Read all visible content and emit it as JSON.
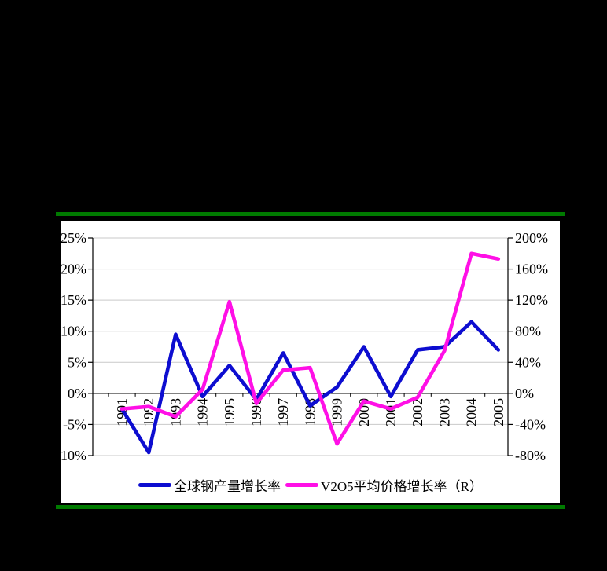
{
  "canvas": {
    "background": "#000000"
  },
  "separators": {
    "color": "#007A00"
  },
  "panel": {
    "background": "#ffffff",
    "gridline_color": "#c9c9c9",
    "axis_color": "#000000"
  },
  "chart_data": {
    "type": "line",
    "title": "",
    "x": [
      "1991",
      "1992",
      "1993",
      "1994",
      "1995",
      "1996",
      "1997",
      "1998",
      "1999",
      "2000",
      "2001",
      "2002",
      "2003",
      "2004",
      "2005"
    ],
    "series": [
      {
        "name": "全球钢产量增长率",
        "axis": "left",
        "color": "#0d0dd0",
        "values": [
          -2.5,
          -9.5,
          9.5,
          -0.5,
          4.5,
          -1,
          6.5,
          -2,
          1,
          7.5,
          -0.5,
          7,
          7.5,
          11.5,
          7
        ]
      },
      {
        "name": "V2O5平均价格增长率（R）",
        "axis": "right",
        "color": "#ff0fe6",
        "values": [
          -20,
          -17,
          -30,
          5,
          118,
          -13,
          30,
          33,
          -65,
          -10,
          -20,
          -5,
          55,
          180,
          173
        ]
      }
    ],
    "left_axis": {
      "min": -10,
      "max": 25,
      "step": 5,
      "ticks": [
        "25%",
        "20%",
        "15%",
        "10%",
        "5%",
        "0%",
        "-5%",
        "-10%"
      ]
    },
    "right_axis": {
      "min": -80,
      "max": 200,
      "step": 40,
      "ticks": [
        "200%",
        "160%",
        "120%",
        "80%",
        "40%",
        "0%",
        "-40%",
        "-80%"
      ]
    },
    "grid": true,
    "legend_position": "bottom",
    "x_label_rotation": -90
  },
  "legend": {
    "items": [
      {
        "label": "全球钢产量增长率",
        "color": "#0d0dd0"
      },
      {
        "label": "V2O5平均价格增长率（R）",
        "color": "#ff0fe6"
      }
    ]
  }
}
